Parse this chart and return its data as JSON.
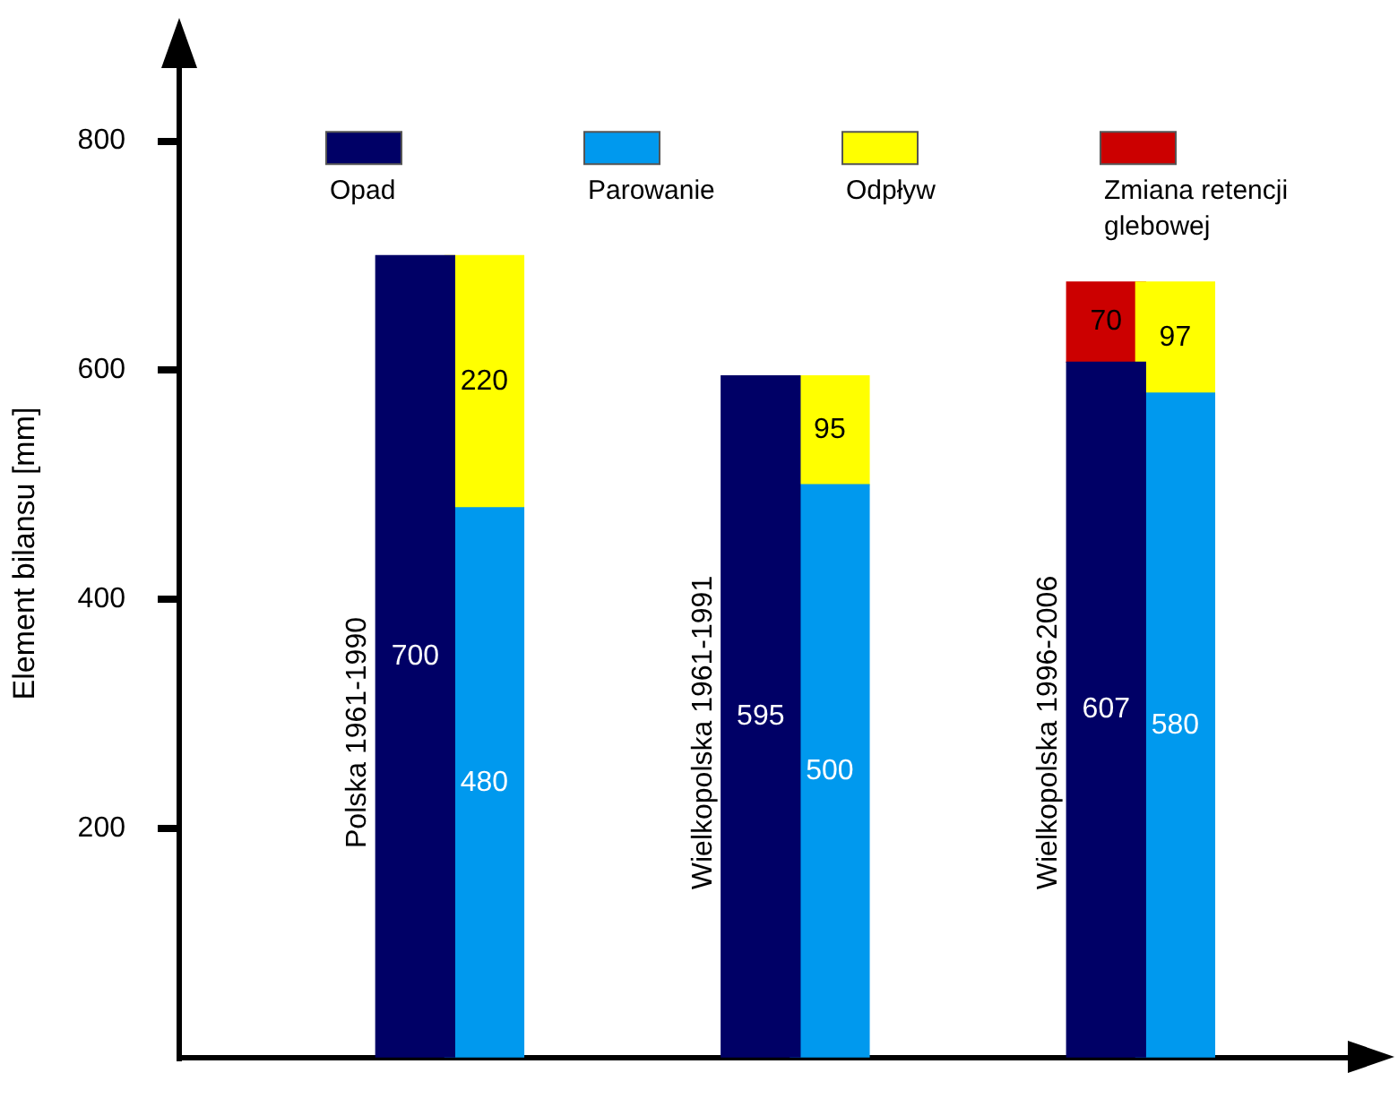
{
  "chart_data": {
    "type": "bar",
    "ylabel": "Element bilansu [mm]",
    "categories": [
      "Polska 1961-1990",
      null,
      "Wielkopolska 1961-1991",
      null,
      "Wielkopolska 1996-2006",
      null
    ],
    "series": [
      {
        "name": "Opad",
        "color": "#000066",
        "values": [
          700,
          null,
          595,
          null,
          607,
          null
        ]
      },
      {
        "name": "Parowanie",
        "color": "#0099ee",
        "values": [
          null,
          480,
          null,
          500,
          null,
          580
        ]
      },
      {
        "name": "Odpływ",
        "color": "#ffff00",
        "values": [
          null,
          220,
          null,
          95,
          null,
          97
        ]
      },
      {
        "name": "Zmiana retencji glebowej",
        "color": "#cc0000",
        "values": [
          null,
          null,
          null,
          null,
          70,
          null
        ]
      }
    ],
    "stacked": true,
    "ylim": [
      0,
      880
    ],
    "yticks": [
      200,
      400,
      600,
      800
    ],
    "data_labels": true,
    "legend": "top"
  }
}
